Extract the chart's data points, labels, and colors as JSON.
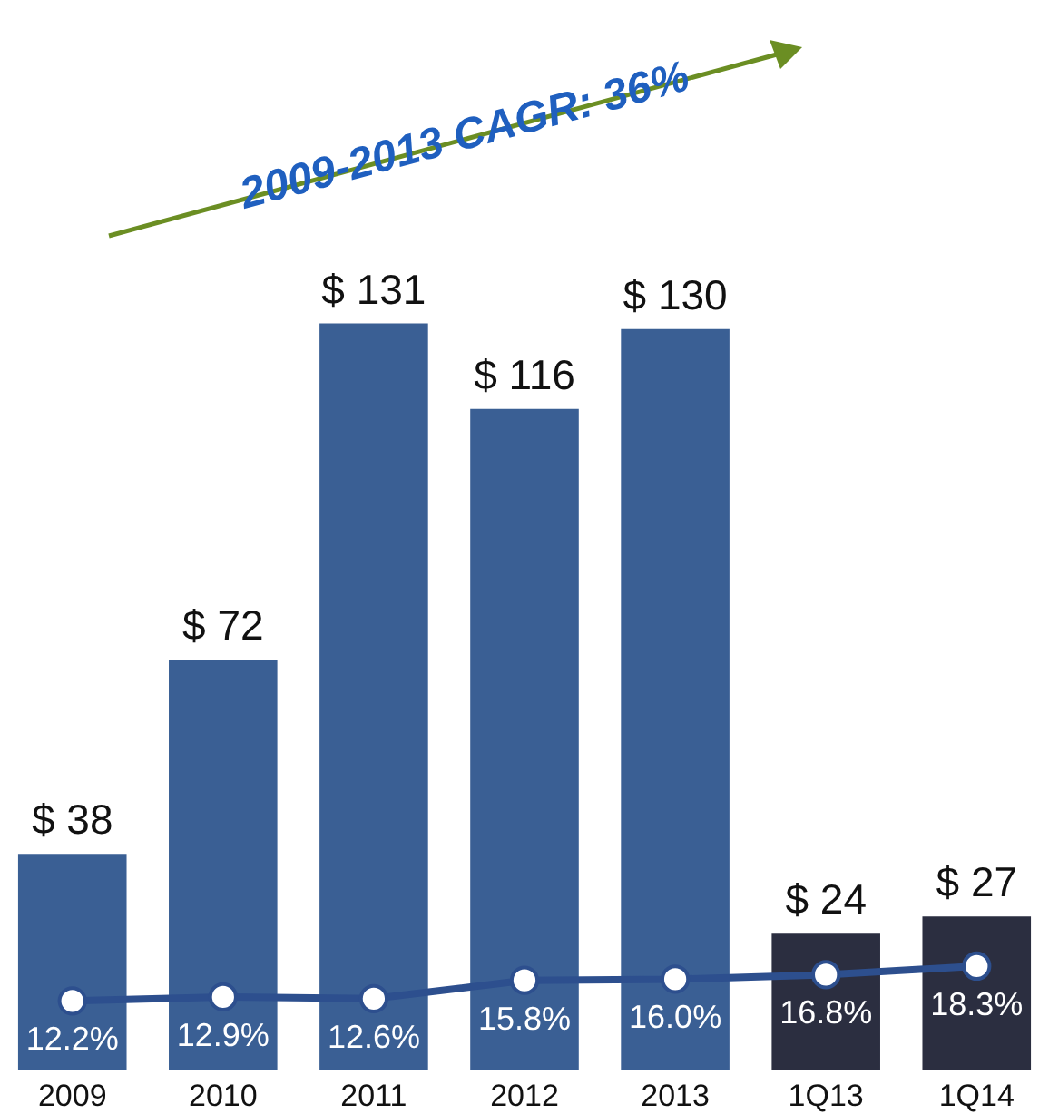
{
  "chart_data": {
    "type": "bar",
    "annotations": [
      "2009-2013 CAGR: 36%"
    ],
    "categories": [
      "2009",
      "2010",
      "2011",
      "2012",
      "2013",
      "1Q13",
      "1Q14"
    ],
    "tick_labels": "x",
    "grid": false,
    "marker": "circle",
    "series": [
      {
        "values": [
          38,
          72,
          131,
          116,
          130,
          24,
          27
        ],
        "colors": [
          "#3a5f94",
          "#3a5f94",
          "#3a5f94",
          "#3a5f94",
          "#3a5f94",
          "#2b2e40",
          "#2b2e40"
        ],
        "value_labels": [
          "$ 38",
          "$ 72",
          "$ 131",
          "$ 116",
          "$ 130",
          "$ 24",
          "$ 27"
        ]
      },
      {
        "type": "line",
        "color": "#2d4f8e",
        "values": [
          12.2,
          12.9,
          12.6,
          15.8,
          16.0,
          16.8,
          18.3
        ],
        "value_labels": [
          "12.2%",
          "12.9%",
          "12.6%",
          "15.8%",
          "16.0%",
          "16.8%",
          "18.3%"
        ]
      }
    ]
  }
}
